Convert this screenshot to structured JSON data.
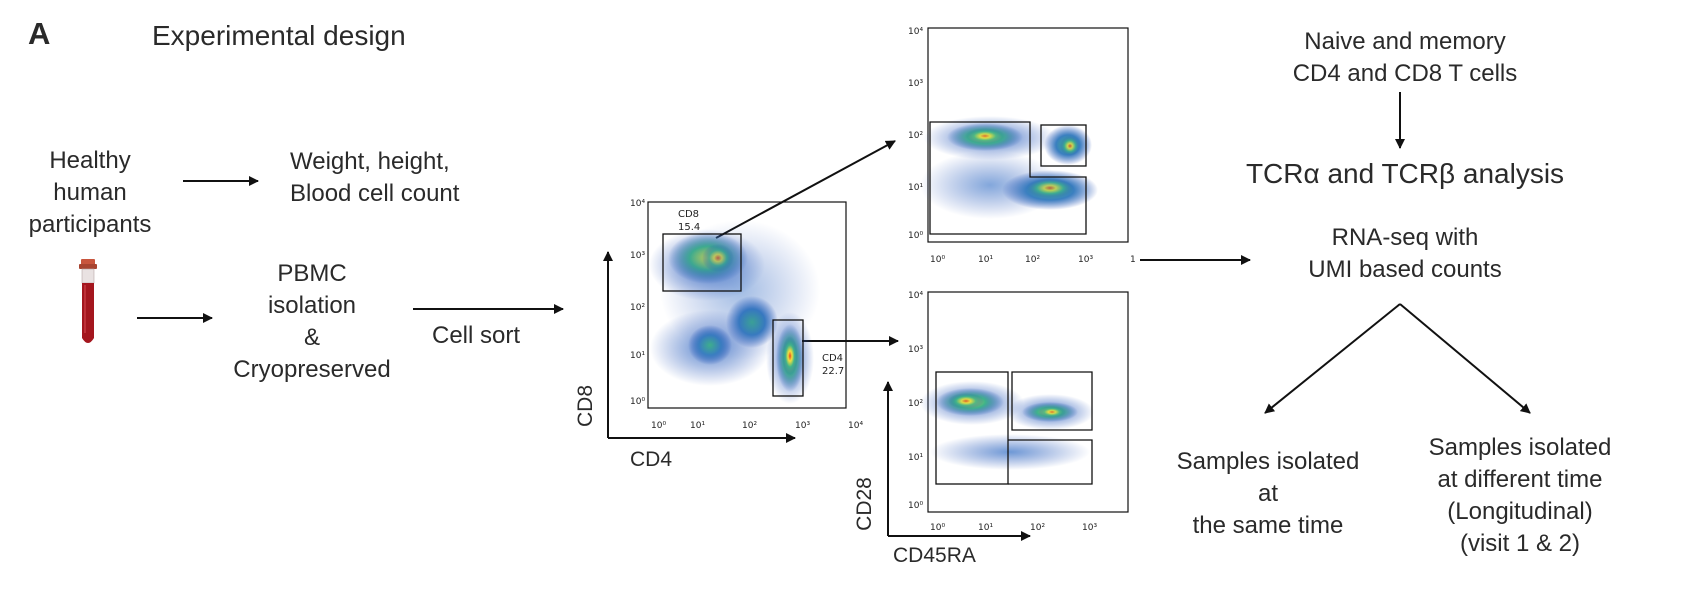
{
  "panel_label": "A",
  "title": "Experimental design",
  "participants": [
    "Healthy",
    "human",
    "participants"
  ],
  "measurements": [
    "Weight, height,",
    "Blood cell count"
  ],
  "pbmc": [
    "PBMC",
    "isolation",
    "&",
    "Cryopreserved"
  ],
  "cell_sort": "Cell sort",
  "plot_main": {
    "xlabel": "CD4",
    "ylabel": "CD8",
    "gate_cd8": {
      "name": "CD8",
      "pct": "15.4"
    },
    "gate_cd4": {
      "name": "CD4",
      "pct": "22.7"
    }
  },
  "plot_cd8_subsets": {
    "x_ticks": [
      "10^0",
      "10^1",
      "10^2",
      "10^3",
      "1"
    ],
    "y_ticks": [
      "10^0",
      "10^1",
      "10^2",
      "10^3",
      "10^4"
    ]
  },
  "plot_cd4_subsets": {
    "xlabel": "CD45RA",
    "ylabel": "CD28",
    "x_ticks": [
      "10^0",
      "10^1",
      "10^2",
      "10^3"
    ],
    "y_ticks": [
      "10^0",
      "10^1",
      "10^2",
      "10^3",
      "10^4"
    ]
  },
  "cells": [
    "Naive and memory",
    "CD4 and CD8 T cells"
  ],
  "tcr": "TCRα and TCRβ analysis",
  "rnaseq": [
    "RNA-seq with",
    "UMI based counts"
  ],
  "same_time": [
    "Samples isolated",
    "at",
    "the same time"
  ],
  "longitudinal": [
    "Samples isolated",
    "at different time",
    "(Longitudinal)",
    "(visit 1 & 2)"
  ],
  "colors": {
    "blood": "#a4161e",
    "cap": "#c8553d",
    "text": "#2a2a2a",
    "density_low": "#2c55b8",
    "density_mid": "#3fb38a",
    "density_high": "#f0e040",
    "density_peak": "#e8431f"
  }
}
